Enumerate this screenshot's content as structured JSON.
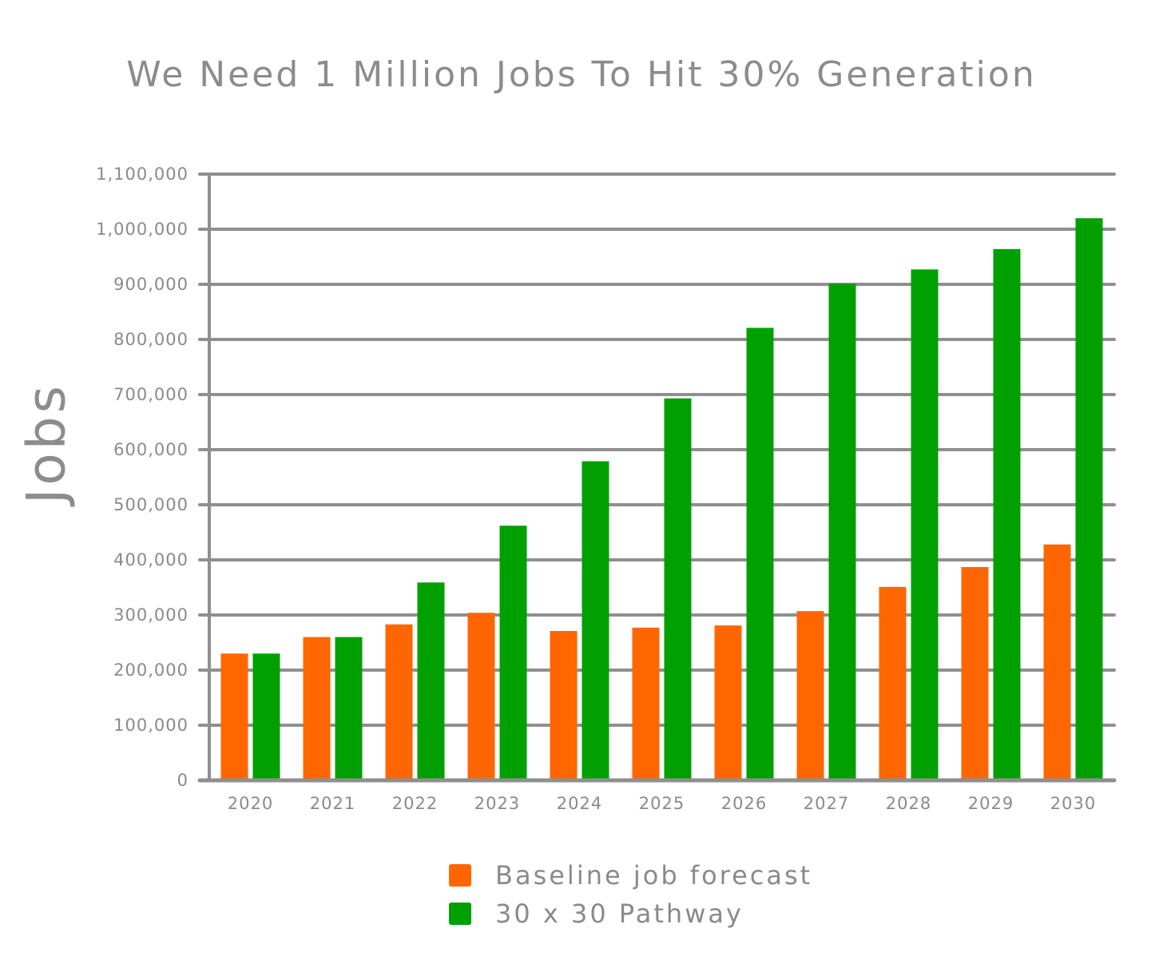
{
  "chart_data": {
    "type": "bar",
    "title": "We Need 1 Million Jobs To Hit 30% Generation",
    "ylabel": "Jobs",
    "xlabel": "",
    "categories": [
      "2020",
      "2021",
      "2022",
      "2023",
      "2024",
      "2025",
      "2026",
      "2027",
      "2028",
      "2029",
      "2030"
    ],
    "series": [
      {
        "name": "Baseline job forecast",
        "color": "#ff6600",
        "values": [
          230000,
          260000,
          283000,
          304000,
          271000,
          277000,
          281000,
          307000,
          351000,
          387000,
          428000
        ]
      },
      {
        "name": "30 x 30 Pathway",
        "color": "#00a000",
        "values": [
          230000,
          260000,
          359000,
          462000,
          579000,
          693000,
          821000,
          901000,
          927000,
          964000,
          1020000
        ]
      }
    ],
    "ylim": [
      0,
      1100000
    ],
    "yticks": [
      0,
      100000,
      200000,
      300000,
      400000,
      500000,
      600000,
      700000,
      800000,
      900000,
      1000000,
      1100000
    ],
    "ytick_labels": [
      "0",
      "100,000",
      "200,000",
      "300,000",
      "400,000",
      "500,000",
      "600,000",
      "700,000",
      "800,000",
      "900,000",
      "1,000,000",
      "1,100,000"
    ],
    "grid": true,
    "legend_position": "bottom-center"
  }
}
